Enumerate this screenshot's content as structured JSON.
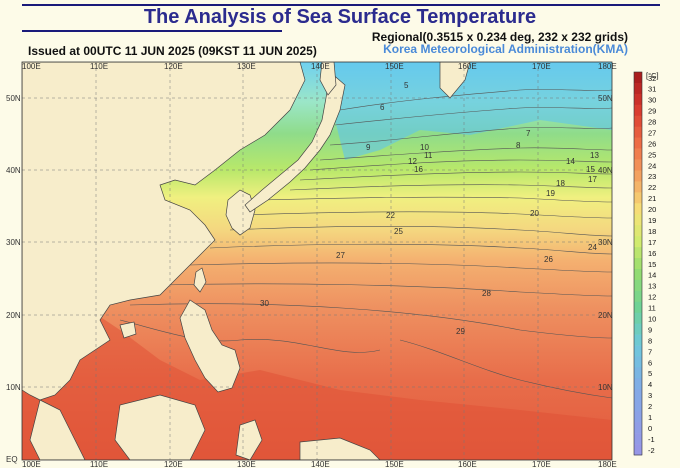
{
  "title": "The Analysis of Sea Surface Temperature",
  "issued": "Issued at    00UTC 11 JUN 2025 (09KST 11 JUN 2025)",
  "regional": "Regional(0.3515 x 0.234 deg, 232 x 232 grids)",
  "agency": "Korea Meteorological Administration(KMA)",
  "lon_labels": [
    "100E",
    "110E",
    "120E",
    "130E",
    "140E",
    "150E",
    "160E",
    "170E",
    "180E"
  ],
  "lat_labels": [
    "50N",
    "40N",
    "30N",
    "20N",
    "10N",
    "EQ"
  ],
  "colorbar_unit": "[°C]",
  "colorbar_levels": [
    "32",
    "31",
    "30",
    "29",
    "28",
    "27",
    "26",
    "25",
    "24",
    "23",
    "22",
    "21",
    "20",
    "19",
    "18",
    "17",
    "16",
    "15",
    "14",
    "13",
    "12",
    "11",
    "10",
    "9",
    "8",
    "7",
    "6",
    "5",
    "4",
    "3",
    "2",
    "1",
    "0",
    "-1",
    "-2"
  ],
  "colors": {
    "land": "#f7edcb",
    "title": "#2b2b8e",
    "agency": "#4a8ad8"
  },
  "contour_labels": [
    "5",
    "6",
    "7",
    "8",
    "9",
    "10",
    "11",
    "12",
    "13",
    "14",
    "15",
    "16",
    "17",
    "18",
    "19",
    "20",
    "22",
    "24",
    "25",
    "26",
    "27",
    "28",
    "29",
    "30"
  ]
}
